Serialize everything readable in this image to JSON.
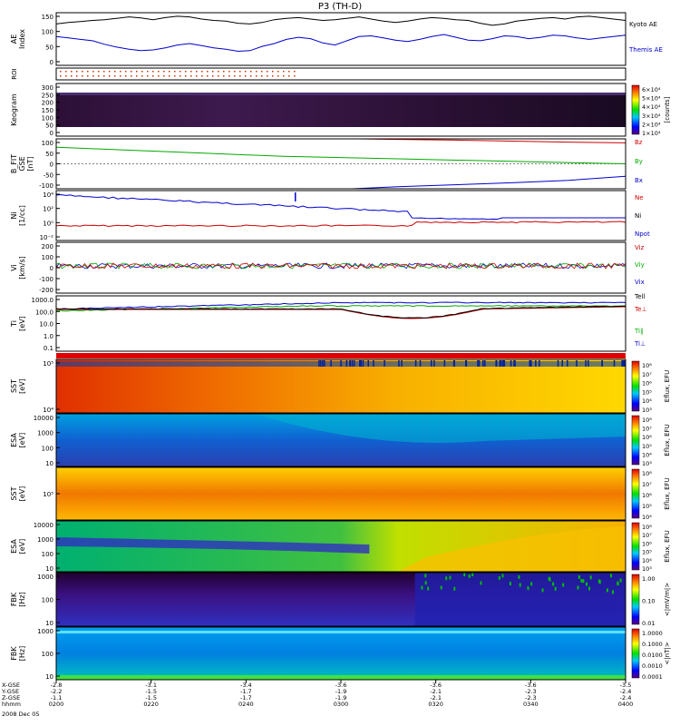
{
  "title": "P3 (TH-D)",
  "footer_date": "2008 Dec 05",
  "colors": {
    "kyoto": "#000000",
    "themis": "#0000cc",
    "bz": "#cc0000",
    "by": "#00aa00",
    "bx": "#0000cc"
  },
  "chart_data": [
    {
      "type": "line",
      "panel": "ae",
      "ylabel": "AE Index",
      "ylim": [
        0,
        150
      ],
      "yticks": [
        "150",
        "100",
        "50",
        "0"
      ],
      "series": [
        {
          "name": "Kyoto AE",
          "color": "#000000",
          "values": [
            118,
            122,
            125,
            128,
            130,
            134,
            138,
            135,
            130,
            136,
            140,
            138,
            132,
            128,
            126,
            120,
            118,
            122,
            130,
            134,
            136,
            132,
            128,
            130,
            134,
            138,
            132,
            126,
            122,
            126,
            132,
            136,
            134,
            130,
            128,
            120,
            114,
            118,
            126,
            130,
            134,
            136,
            132,
            138,
            140,
            136,
            132,
            128
          ]
        },
        {
          "name": "Themis AE",
          "color": "#0000cc",
          "values": [
            82,
            78,
            74,
            70,
            60,
            52,
            46,
            42,
            44,
            50,
            58,
            62,
            56,
            50,
            46,
            40,
            42,
            54,
            62,
            74,
            80,
            76,
            64,
            58,
            70,
            82,
            84,
            78,
            72,
            68,
            74,
            82,
            88,
            80,
            72,
            70,
            76,
            84,
            82,
            76,
            80,
            86,
            84,
            78,
            74,
            78,
            82,
            86
          ]
        }
      ]
    },
    {
      "type": "table",
      "panel": "roi",
      "ylabel": "ROI"
    },
    {
      "type": "heatmap",
      "panel": "keogram",
      "ylabel": "Keogram",
      "yticks": [
        "300",
        "250",
        "200",
        "150",
        "100",
        "50",
        "0"
      ],
      "colorbar_label": "[counts]",
      "colorbar_ticks": [
        "6×10⁴",
        "5×10⁴",
        "4×10⁴",
        "3×10⁴",
        "2×10⁴",
        "1×10⁴"
      ]
    },
    {
      "type": "line",
      "panel": "bfield",
      "ylabel": "B_FIT GSE [nT]",
      "ylim": [
        -100,
        100
      ],
      "yticks": [
        "100",
        "50",
        "0",
        "-50",
        "-100"
      ],
      "series": [
        {
          "name": "Bz",
          "color": "#cc0000",
          "x": [
            0.53,
            0.6,
            0.7,
            0.8,
            0.9,
            1.0
          ],
          "values": [
            100,
            98,
            95,
            91,
            87,
            84
          ]
        },
        {
          "name": "By",
          "color": "#00aa00",
          "x": [
            0,
            0.2,
            0.4,
            0.6,
            0.8,
            1.0
          ],
          "values": [
            66,
            48,
            30,
            20,
            10,
            0
          ]
        },
        {
          "name": "Bx",
          "color": "#0000cc",
          "x": [
            0.52,
            0.6,
            0.7,
            0.8,
            0.9,
            1.0
          ],
          "values": [
            -100,
            -92,
            -84,
            -76,
            -66,
            -50
          ]
        }
      ]
    },
    {
      "type": "line",
      "panel": "density",
      "ylabel": "Ni [1/cc]",
      "yticks": [
        "10⁴",
        "10²",
        "10⁰",
        "10⁻²"
      ],
      "series": [
        {
          "name": "Ne",
          "color": "#cc0000"
        },
        {
          "name": "Ni",
          "color": "#000000"
        },
        {
          "name": "Npot",
          "color": "#0000cc"
        }
      ]
    },
    {
      "type": "line",
      "panel": "velocity",
      "ylabel": "Vi [km/s]",
      "yticks": [
        "200",
        "100",
        "0",
        "-100",
        "-200"
      ],
      "series": [
        {
          "name": "Viz",
          "color": "#cc0000"
        },
        {
          "name": "Viy",
          "color": "#00aa00"
        },
        {
          "name": "Vix",
          "color": "#0000cc"
        }
      ]
    },
    {
      "type": "line",
      "panel": "temperature",
      "ylabel": "Ti [eV]",
      "yticks": [
        "1000.0",
        "100.0",
        "10.0",
        "1.0",
        "0.1"
      ],
      "series": [
        {
          "name": "Tell",
          "color": "#000000"
        },
        {
          "name": "Te⊥",
          "color": "#cc0000"
        },
        {
          "name": "Ti∥",
          "color": "#00aa00"
        },
        {
          "name": "Ti⊥",
          "color": "#0000cc"
        }
      ]
    },
    {
      "type": "heatmap",
      "panel": "sst_ion",
      "ylabel": "SST [eV]",
      "yticks": [
        "10⁵",
        "10⁴"
      ],
      "colorbar_label": "Eflux, EFU",
      "colorbar_ticks": [
        "10⁸",
        "10⁷",
        "10⁶",
        "10⁵",
        "10⁴",
        "10³"
      ]
    },
    {
      "type": "heatmap",
      "panel": "esa_ion",
      "ylabel": "ESA [eV]",
      "yticks": [
        "10000",
        "1000",
        "100",
        "10"
      ],
      "colorbar_label": "Eflux, EFU",
      "colorbar_ticks": [
        "10⁸",
        "10⁷",
        "10⁶",
        "10⁵",
        "10⁴",
        "10³"
      ]
    },
    {
      "type": "heatmap",
      "panel": "sst_elec",
      "ylabel": "SST [eV]",
      "yticks": [
        "10⁵"
      ],
      "colorbar_label": "Eflux, EFU",
      "colorbar_ticks": [
        "10⁸",
        "10⁷",
        "10⁶",
        "10⁵",
        "10⁴"
      ]
    },
    {
      "type": "heatmap",
      "panel": "esa_elec",
      "ylabel": "ESA [eV]",
      "yticks": [
        "10000",
        "1000",
        "100",
        "10"
      ],
      "colorbar_label": "Eflux, EFU",
      "colorbar_ticks": [
        "10⁸",
        "10⁷",
        "10⁶",
        "10⁵",
        "10⁴",
        "10³"
      ]
    },
    {
      "type": "heatmap",
      "panel": "fbk_e",
      "ylabel": "FBK [Hz]",
      "yticks": [
        "1000",
        "100",
        "10"
      ],
      "colorbar_label": "<|mV/m|>",
      "colorbar_ticks": [
        "1.00",
        "0.10",
        "0.01"
      ]
    },
    {
      "type": "heatmap",
      "panel": "fbk_b",
      "ylabel": "FBK [Hz]",
      "yticks": [
        "1000",
        "100",
        "10"
      ],
      "colorbar_label": "<|nT|>",
      "colorbar_ticks": [
        "1.0000",
        "0.1000",
        "0.0100",
        "0.0010",
        "0.0001"
      ]
    }
  ],
  "xaxis": {
    "row_labels": [
      "X-GSE",
      "Y-GSE",
      "Z-GSE",
      "hhmm"
    ],
    "columns": [
      {
        "x": "-2.8",
        "y": "-2.2",
        "z": "-1.1",
        "t": "0200"
      },
      {
        "x": "-3.1",
        "y": "-1.5",
        "z": "-1.5",
        "t": "0220"
      },
      {
        "x": "-3.4",
        "y": "-1.7",
        "z": "-1.7",
        "t": "0240"
      },
      {
        "x": "-3.6",
        "y": "-1.9",
        "z": "-1.9",
        "t": "0300"
      },
      {
        "x": "-3.6",
        "y": "-2.1",
        "z": "-2.1",
        "t": "0320"
      },
      {
        "x": "-3.6",
        "y": "-2.3",
        "z": "-2.3",
        "t": "0340"
      },
      {
        "x": "-3.5",
        "y": "-2.4",
        "z": "-2.4",
        "t": "0400"
      }
    ]
  }
}
